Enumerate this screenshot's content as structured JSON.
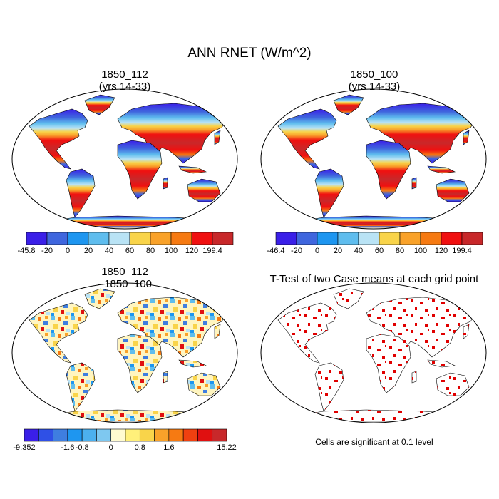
{
  "main_title": "ANN RNET (W/m^2)",
  "panels": {
    "p1": {
      "title1": "1850_112",
      "title2": "(yrs 14-33)"
    },
    "p2": {
      "title1": "1850_100",
      "title2": "(yrs 14-33)"
    },
    "p3": {
      "title1": "1850_112",
      "title2": "- 1850_100"
    },
    "p4": {
      "title1": "T-Test of two Case means at each grid point",
      "title2": ""
    }
  },
  "colorbars": {
    "cb1": {
      "colors": [
        "#3a1fe8",
        "#3f66de",
        "#1e96f0",
        "#5fbdee",
        "#b9e3f5",
        "#f9d44a",
        "#f9a22a",
        "#f67a12",
        "#f01010",
        "#c8282a"
      ],
      "labels": [
        "-45.8",
        "-20",
        "0",
        "20",
        "40",
        "60",
        "80",
        "100",
        "120",
        "199.4"
      ]
    },
    "cb2": {
      "colors": [
        "#3a1fe8",
        "#3f66de",
        "#1e96f0",
        "#5fbdee",
        "#b9e3f5",
        "#f9d44a",
        "#f9a22a",
        "#f67a12",
        "#f01010",
        "#c8282a"
      ],
      "labels": [
        "-46.4",
        "-20",
        "0",
        "20",
        "40",
        "60",
        "80",
        "100",
        "120",
        "199.4"
      ]
    },
    "cb3": {
      "colors": [
        "#3a1fe8",
        "#2f50e6",
        "#3f7ee0",
        "#1e96f0",
        "#4cb0ee",
        "#7ec8f0",
        "#fffbd0",
        "#fff07a",
        "#f9d44a",
        "#f9a22a",
        "#f67a12",
        "#f04010",
        "#e01010",
        "#c8282a"
      ],
      "labels": [
        "-9.352",
        "-1.6",
        "-0.8",
        "0",
        "0.8",
        "1.6",
        "15.22"
      ],
      "label_positions": [
        0,
        3,
        4,
        6,
        8,
        10,
        14
      ]
    }
  },
  "significance_note": "Cells are significant at 0.1 level",
  "significance_color": "#e00000",
  "land_outline_color": "#000000"
}
